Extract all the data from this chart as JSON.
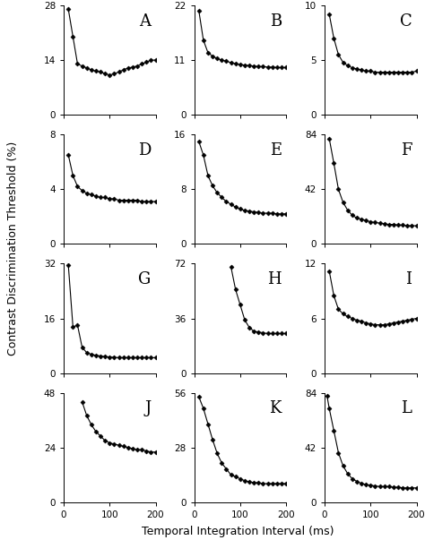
{
  "panels": [
    {
      "label": "A",
      "ylim": [
        0,
        28
      ],
      "yticks": [
        0,
        14,
        28
      ],
      "x": [
        10,
        20,
        30,
        40,
        50,
        60,
        70,
        80,
        90,
        100,
        110,
        120,
        130,
        140,
        150,
        160,
        170,
        180,
        190,
        200
      ],
      "y": [
        27,
        20,
        13,
        12.5,
        12,
        11.5,
        11.2,
        11,
        10.5,
        10.2,
        10.5,
        11,
        11.5,
        12,
        12.2,
        12.5,
        13,
        13.5,
        14,
        14
      ]
    },
    {
      "label": "B",
      "ylim": [
        0,
        22
      ],
      "yticks": [
        0,
        11,
        22
      ],
      "x": [
        10,
        20,
        30,
        40,
        50,
        60,
        70,
        80,
        90,
        100,
        110,
        120,
        130,
        140,
        150,
        160,
        170,
        180,
        190,
        200
      ],
      "y": [
        21,
        15,
        12.5,
        11.8,
        11.3,
        11,
        10.8,
        10.5,
        10.3,
        10.1,
        10,
        9.9,
        9.8,
        9.7,
        9.7,
        9.6,
        9.6,
        9.5,
        9.5,
        9.5
      ]
    },
    {
      "label": "C",
      "ylim": [
        0,
        10
      ],
      "yticks": [
        0,
        5,
        10
      ],
      "x": [
        10,
        20,
        30,
        40,
        50,
        60,
        70,
        80,
        90,
        100,
        110,
        120,
        130,
        140,
        150,
        160,
        170,
        180,
        190,
        200
      ],
      "y": [
        9.2,
        7,
        5.5,
        4.8,
        4.5,
        4.3,
        4.2,
        4.1,
        4.0,
        4.0,
        3.9,
        3.9,
        3.9,
        3.9,
        3.9,
        3.9,
        3.9,
        3.9,
        3.9,
        4.0
      ]
    },
    {
      "label": "D",
      "ylim": [
        0,
        8
      ],
      "yticks": [
        0,
        4,
        8
      ],
      "x": [
        10,
        20,
        30,
        40,
        50,
        60,
        70,
        80,
        90,
        100,
        110,
        120,
        130,
        140,
        150,
        160,
        170,
        180,
        190,
        200
      ],
      "y": [
        6.5,
        5.0,
        4.2,
        3.9,
        3.7,
        3.6,
        3.5,
        3.4,
        3.4,
        3.3,
        3.3,
        3.2,
        3.2,
        3.2,
        3.2,
        3.2,
        3.1,
        3.1,
        3.1,
        3.1
      ]
    },
    {
      "label": "E",
      "ylim": [
        0,
        16
      ],
      "yticks": [
        0,
        8,
        16
      ],
      "x": [
        10,
        20,
        30,
        40,
        50,
        60,
        70,
        80,
        90,
        100,
        110,
        120,
        130,
        140,
        150,
        160,
        170,
        180,
        190,
        200
      ],
      "y": [
        15,
        13,
        10,
        8.5,
        7.5,
        6.8,
        6.2,
        5.8,
        5.4,
        5.1,
        4.9,
        4.8,
        4.7,
        4.6,
        4.5,
        4.5,
        4.5,
        4.4,
        4.4,
        4.4
      ]
    },
    {
      "label": "F",
      "ylim": [
        0,
        84
      ],
      "yticks": [
        0,
        42,
        84
      ],
      "x": [
        10,
        20,
        30,
        40,
        50,
        60,
        70,
        80,
        90,
        100,
        110,
        120,
        130,
        140,
        150,
        160,
        170,
        180,
        190,
        200
      ],
      "y": [
        81,
        62,
        42,
        32,
        26,
        22,
        20,
        19,
        18,
        17,
        16.5,
        16,
        15.5,
        15,
        15,
        14.5,
        14.5,
        14,
        14,
        14
      ]
    },
    {
      "label": "G",
      "ylim": [
        0,
        32
      ],
      "yticks": [
        0,
        16,
        32
      ],
      "x": [
        10,
        20,
        30,
        40,
        50,
        60,
        70,
        80,
        90,
        100,
        110,
        120,
        130,
        140,
        150,
        160,
        170,
        180,
        190,
        200
      ],
      "y": [
        31.5,
        13.5,
        14.0,
        7.5,
        6.0,
        5.5,
        5.2,
        5.0,
        4.8,
        4.7,
        4.6,
        4.5,
        4.5,
        4.5,
        4.5,
        4.5,
        4.5,
        4.5,
        4.5,
        4.5
      ]
    },
    {
      "label": "H",
      "ylim": [
        0,
        72
      ],
      "yticks": [
        0,
        36,
        72
      ],
      "x": [
        80,
        90,
        100,
        110,
        120,
        130,
        140,
        150,
        160,
        170,
        180,
        190,
        200
      ],
      "y": [
        70,
        55,
        45,
        35,
        30,
        27.5,
        27,
        26.5,
        26,
        26,
        26,
        26,
        26
      ]
    },
    {
      "label": "I",
      "ylim": [
        0,
        12
      ],
      "yticks": [
        0,
        6,
        12
      ],
      "x": [
        10,
        20,
        30,
        40,
        50,
        60,
        70,
        80,
        90,
        100,
        110,
        120,
        130,
        140,
        150,
        160,
        170,
        180,
        190,
        200
      ],
      "y": [
        11.2,
        8.5,
        7.0,
        6.5,
        6.2,
        6.0,
        5.8,
        5.7,
        5.5,
        5.4,
        5.3,
        5.3,
        5.3,
        5.4,
        5.5,
        5.6,
        5.7,
        5.8,
        5.9,
        6.0
      ]
    },
    {
      "label": "J",
      "ylim": [
        0,
        48
      ],
      "yticks": [
        0,
        24,
        48
      ],
      "x": [
        40,
        50,
        60,
        70,
        80,
        90,
        100,
        110,
        120,
        130,
        140,
        150,
        160,
        170,
        180,
        190,
        200
      ],
      "y": [
        44,
        38,
        34,
        31,
        29,
        27,
        26,
        25.5,
        25,
        24.5,
        24,
        23.5,
        23,
        23,
        22.5,
        22,
        22
      ]
    },
    {
      "label": "K",
      "ylim": [
        0,
        56
      ],
      "yticks": [
        0,
        28,
        56
      ],
      "x": [
        10,
        20,
        30,
        40,
        50,
        60,
        70,
        80,
        90,
        100,
        110,
        120,
        130,
        140,
        150,
        160,
        170,
        180,
        190,
        200
      ],
      "y": [
        54,
        48,
        40,
        32,
        25,
        20,
        17,
        14,
        13,
        12,
        11,
        10.5,
        10,
        10,
        9.5,
        9.5,
        9.5,
        9.5,
        9.5,
        9.5
      ]
    },
    {
      "label": "L",
      "ylim": [
        0,
        84
      ],
      "yticks": [
        0,
        42,
        84
      ],
      "x": [
        5,
        10,
        20,
        30,
        40,
        50,
        60,
        70,
        80,
        90,
        100,
        110,
        120,
        130,
        140,
        150,
        160,
        170,
        180,
        190,
        200
      ],
      "y": [
        82,
        72,
        55,
        38,
        28,
        22,
        18,
        16,
        14.5,
        13.5,
        13,
        12.5,
        12,
        12,
        12,
        11.5,
        11.5,
        11,
        11,
        11,
        11
      ]
    }
  ],
  "xlabel": "Temporal Integration Interval (ms)",
  "ylabel": "Contrast Discrimination Threshold (%)",
  "xlim": [
    0,
    200
  ],
  "xticks": [
    0,
    100,
    200
  ],
  "line_color": "black",
  "marker": "D",
  "markersize": 2.5,
  "linewidth": 0.8,
  "bg_color": "white",
  "panel_label_fontsize": 13,
  "tick_fontsize": 7.5,
  "axis_fontsize": 9
}
